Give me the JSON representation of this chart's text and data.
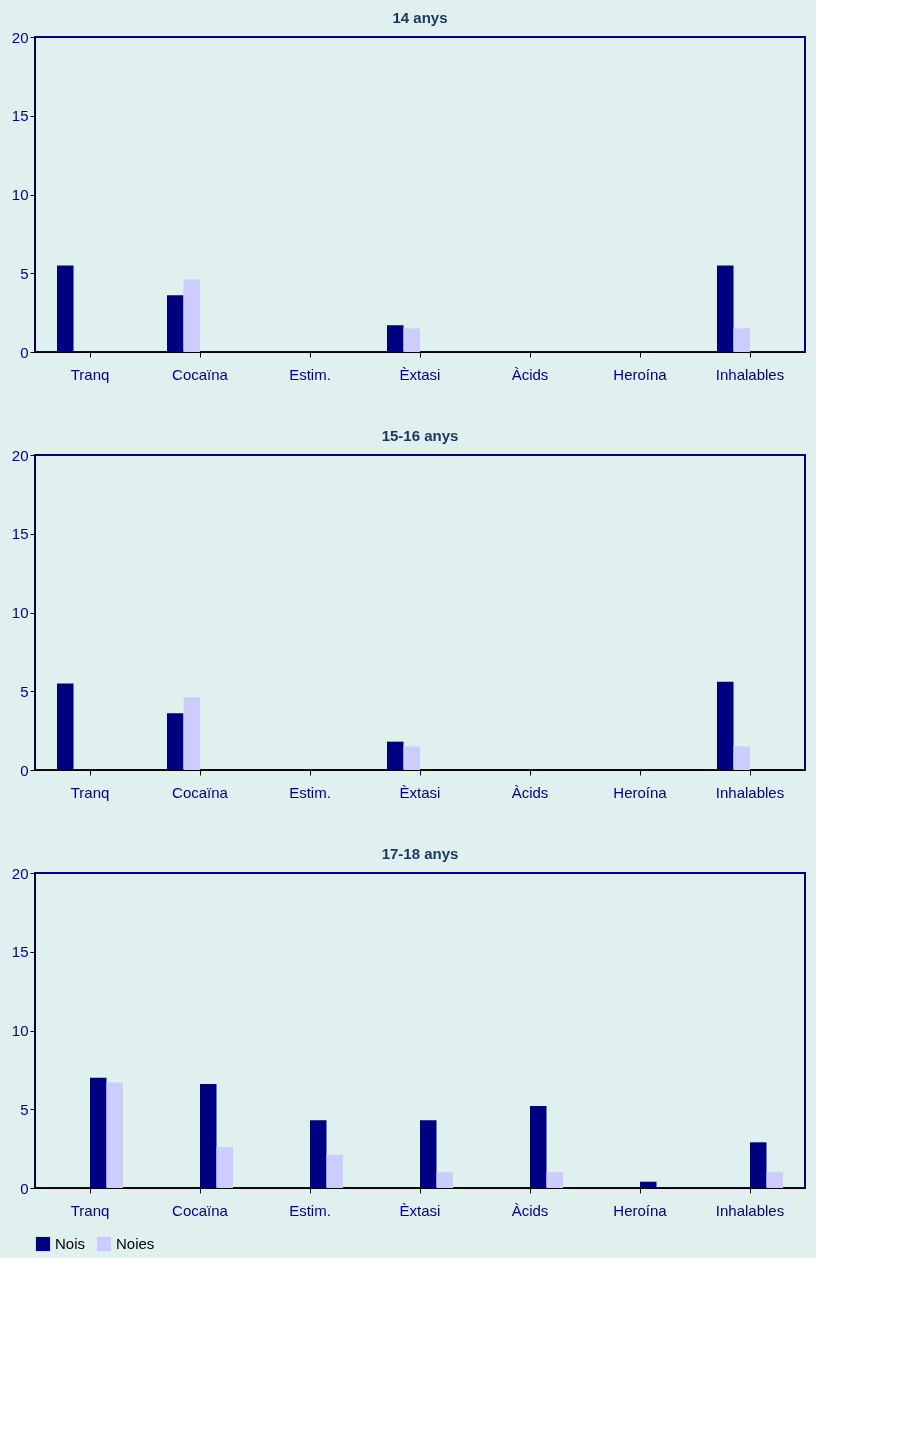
{
  "chart_data": [
    {
      "type": "bar",
      "title": "14 anys",
      "categories": [
        "Tranq",
        "Cocaïna",
        "Estim.",
        "Èxtasi",
        "Àcids",
        "Heroína",
        "Inhalables"
      ],
      "series": [
        {
          "color": "#000080",
          "values": [
            5.5,
            3.6,
            0,
            1.7,
            0,
            0,
            5.5
          ]
        },
        {
          "color": "#ccccff",
          "values": [
            0,
            4.6,
            0,
            1.5,
            0,
            0,
            1.5
          ]
        }
      ],
      "ylim": [
        0,
        20
      ],
      "yticks": [
        0,
        5,
        10,
        15,
        20
      ],
      "grid": false,
      "legend": false
    },
    {
      "type": "bar",
      "title": "15-16 anys",
      "categories": [
        "Tranq",
        "Cocaïna",
        "Estim.",
        "Èxtasi",
        "Àcids",
        "Heroína",
        "Inhalables"
      ],
      "series": [
        {
          "color": "#000080",
          "values": [
            5.5,
            3.6,
            0,
            1.8,
            0,
            0,
            5.6
          ]
        },
        {
          "color": "#ccccff",
          "values": [
            0,
            4.6,
            0,
            1.5,
            0,
            0,
            1.5
          ]
        }
      ],
      "ylim": [
        0,
        20
      ],
      "yticks": [
        0,
        5,
        10,
        15,
        20
      ],
      "grid": false,
      "legend": false
    },
    {
      "type": "bar",
      "title": "17-18 anys",
      "categories": [
        "Tranq",
        "Cocaïna",
        "Estim.",
        "Èxtasi",
        "Àcids",
        "Heroína",
        "Inhalables"
      ],
      "series": [
        {
          "name": "Nois",
          "color": "#000080",
          "values": [
            7.0,
            6.6,
            4.3,
            4.3,
            5.2,
            0.4,
            2.9
          ]
        },
        {
          "name": "Noies",
          "color": "#ccccff",
          "values": [
            6.7,
            2.6,
            2.1,
            1.0,
            1.0,
            0,
            1.0
          ]
        }
      ],
      "ylim": [
        0,
        20
      ],
      "yticks": [
        0,
        5,
        10,
        15,
        20
      ],
      "grid": false,
      "legend": "bottom"
    }
  ]
}
